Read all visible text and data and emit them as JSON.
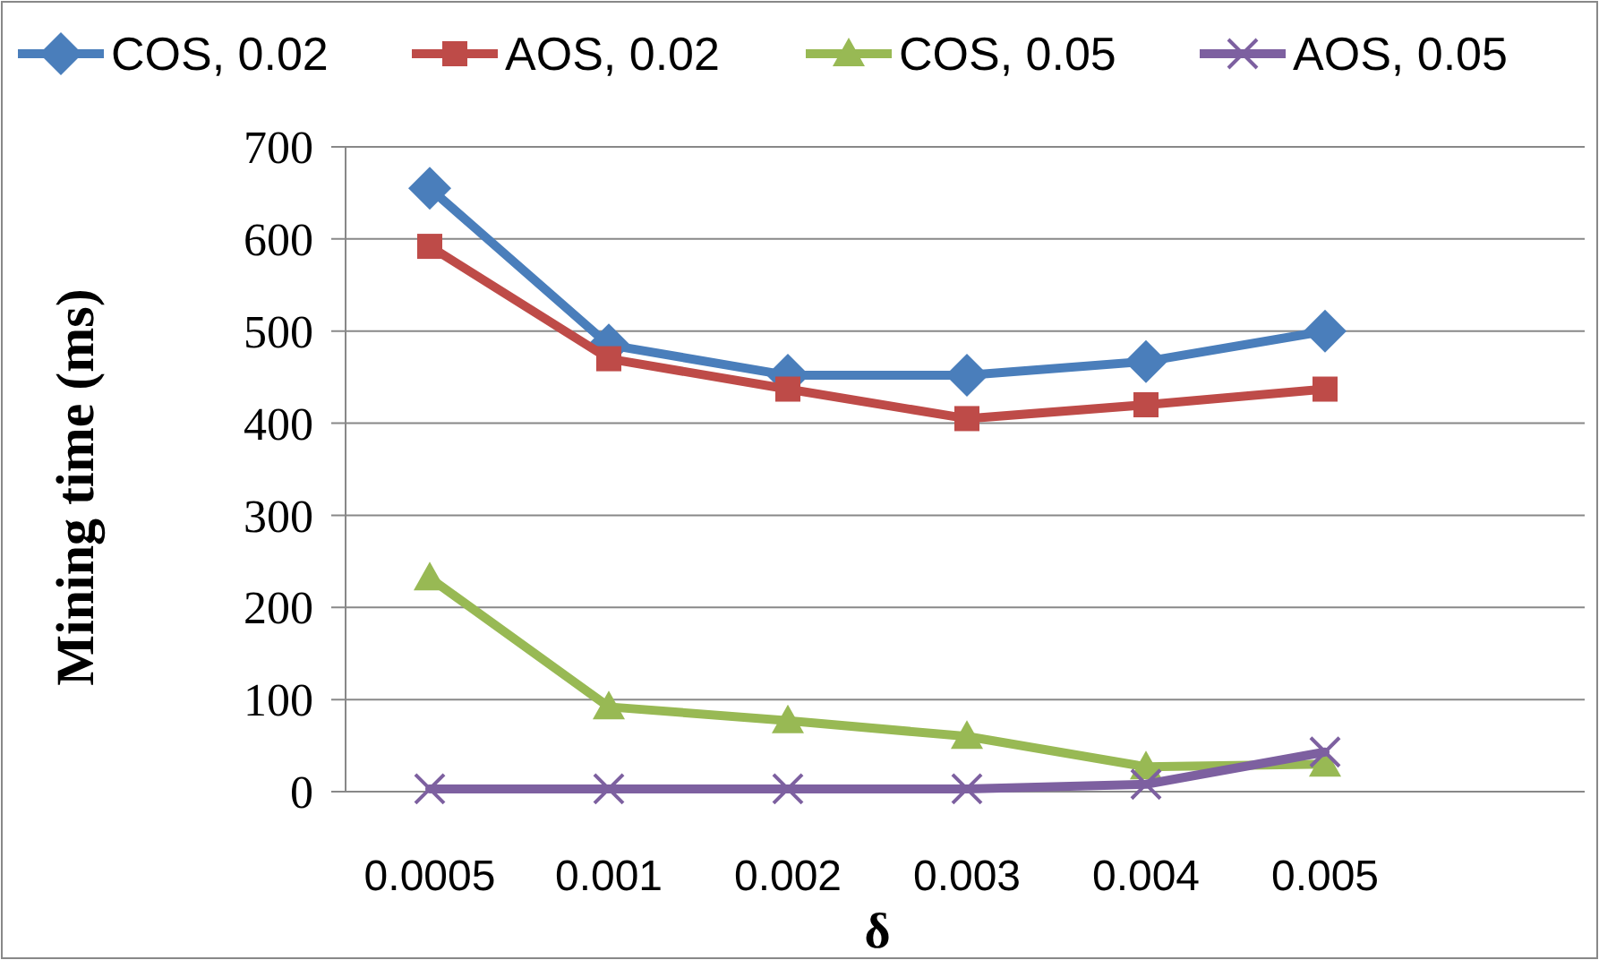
{
  "chart_data": {
    "type": "line",
    "xlabel": "δ",
    "ylabel": "Mining time (ms)",
    "categories": [
      "0.0005",
      "0.001",
      "0.002",
      "0.003",
      "0.004",
      "0.005"
    ],
    "series": [
      {
        "name": "COS, 0.02",
        "color": "#4a7ebb",
        "marker": "diamond",
        "values": [
          655,
          485,
          452,
          452,
          467,
          500
        ]
      },
      {
        "name": "AOS, 0.02",
        "color": "#be4b48",
        "marker": "square",
        "values": [
          592,
          470,
          437,
          405,
          420,
          437
        ]
      },
      {
        "name": "COS, 0.05",
        "color": "#98b954",
        "marker": "triangle",
        "values": [
          232,
          92,
          77,
          60,
          27,
          30
        ]
      },
      {
        "name": "AOS, 0.05",
        "color": "#7d60a0",
        "marker": "cross",
        "values": [
          3,
          3,
          3,
          3,
          8,
          43
        ]
      }
    ],
    "ylim": [
      0,
      700
    ],
    "yticks": [
      0,
      100,
      200,
      300,
      400,
      500,
      600,
      700
    ],
    "grid": "y",
    "legend": "top"
  }
}
